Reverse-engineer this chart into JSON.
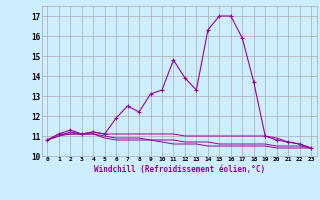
{
  "xlabel": "Windchill (Refroidissement éolien,°C)",
  "x_values": [
    0,
    1,
    2,
    3,
    4,
    5,
    6,
    7,
    8,
    9,
    10,
    11,
    12,
    13,
    14,
    15,
    16,
    17,
    18,
    19,
    20,
    21,
    22,
    23
  ],
  "line1": [
    10.8,
    11.1,
    11.3,
    11.1,
    11.2,
    11.1,
    11.9,
    12.5,
    12.2,
    13.1,
    13.3,
    14.8,
    13.9,
    13.3,
    16.3,
    17.0,
    17.0,
    15.9,
    13.7,
    11.0,
    10.8,
    10.7,
    10.6,
    10.4
  ],
  "line2": [
    10.8,
    11.1,
    11.1,
    11.1,
    11.1,
    10.9,
    10.8,
    10.8,
    10.8,
    10.8,
    10.8,
    10.8,
    10.7,
    10.7,
    10.7,
    10.6,
    10.6,
    10.6,
    10.6,
    10.6,
    10.5,
    10.5,
    10.5,
    10.4
  ],
  "line3": [
    10.8,
    11.0,
    11.2,
    11.1,
    11.2,
    11.1,
    11.1,
    11.1,
    11.1,
    11.1,
    11.1,
    11.1,
    11.0,
    11.0,
    11.0,
    11.0,
    11.0,
    11.0,
    11.0,
    11.0,
    10.9,
    10.7,
    10.6,
    10.4
  ],
  "line4": [
    10.8,
    11.0,
    11.1,
    11.1,
    11.1,
    11.0,
    10.9,
    10.9,
    10.9,
    10.8,
    10.7,
    10.6,
    10.6,
    10.6,
    10.5,
    10.5,
    10.5,
    10.5,
    10.5,
    10.5,
    10.4,
    10.4,
    10.4,
    10.4
  ],
  "line_color": "#990099",
  "bg_color": "#cceeff",
  "grid_color": "#aaaaaa",
  "ylim": [
    10,
    17.5
  ],
  "yticks": [
    10,
    11,
    12,
    13,
    14,
    15,
    16,
    17
  ],
  "xlim": [
    -0.5,
    23.5
  ]
}
